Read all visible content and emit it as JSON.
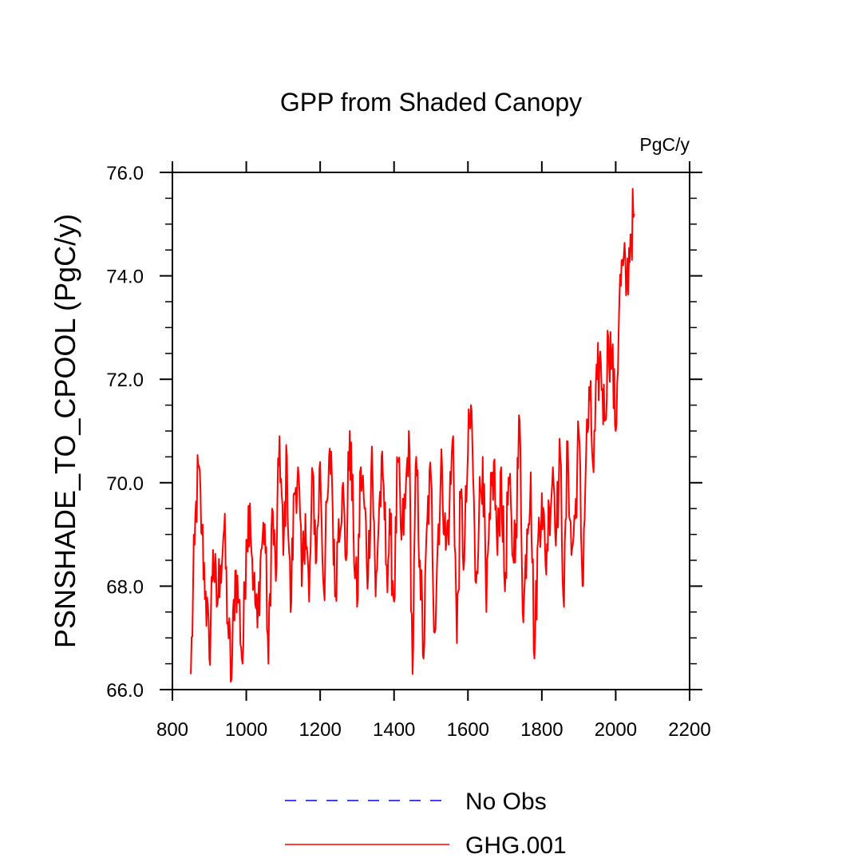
{
  "chart_data": {
    "type": "line",
    "title": "GPP from Shaded Canopy",
    "units": "PgC/y",
    "xlabel": "",
    "ylabel": "PSNSHADE_TO_CPOOL  (PgC/y)",
    "xlim": [
      800,
      2200
    ],
    "ylim": [
      66.0,
      76.0
    ],
    "xticks": [
      800,
      1000,
      1200,
      1400,
      1600,
      1800,
      2000,
      2200
    ],
    "xtick_labels": [
      "800",
      "1000",
      "1200",
      "1400",
      "1600",
      "1800",
      "2000",
      "2200"
    ],
    "yticks": [
      66.0,
      68.0,
      70.0,
      72.0,
      74.0,
      76.0
    ],
    "ytick_labels": [
      "66.0",
      "68.0",
      "70.0",
      "72.0",
      "74.0",
      "76.0"
    ],
    "legend": [
      {
        "name": "No Obs",
        "color": "#0000ff",
        "style": "dashed"
      },
      {
        "name": "GHG.001",
        "color": "#ff0000",
        "style": "solid"
      }
    ],
    "series": [
      {
        "name": "GHG.001",
        "color": "#ff0000",
        "x_start": 850,
        "x_step": 10,
        "values": [
          66.3,
          68.8,
          70.3,
          69.0,
          67.9,
          66.6,
          68.7,
          67.6,
          68.4,
          69.1,
          67.3,
          66.2,
          68.3,
          67.7,
          66.5,
          68.9,
          69.6,
          68.0,
          67.2,
          68.7,
          69.2,
          66.5,
          69.5,
          68.1,
          70.9,
          68.6,
          70.5,
          67.5,
          69.8,
          70.3,
          68.0,
          69.4,
          67.7,
          70.2,
          68.5,
          70.4,
          67.9,
          69.7,
          70.6,
          67.8,
          69.3,
          69.9,
          68.5,
          71.0,
          69.1,
          67.6,
          70.3,
          69.5,
          68.2,
          70.7,
          67.8,
          69.6,
          70.1,
          68.4,
          69.0,
          67.7,
          70.4,
          68.9,
          69.5,
          71.0,
          66.3,
          70.5,
          68.5,
          66.6,
          69.3,
          70.1,
          67.1,
          69.2,
          70.3,
          68.7,
          69.5,
          70.9,
          66.9,
          69.7,
          68.5,
          70.6,
          71.4,
          68.1,
          69.4,
          70.5,
          67.5,
          69.3,
          70.4,
          68.6,
          70.3,
          67.9,
          70.1,
          68.6,
          69.2,
          71.2,
          67.3,
          69.1,
          70.2,
          66.6,
          68.9,
          69.8,
          68.4,
          69.5,
          70.3,
          69.2,
          70.5,
          67.6,
          70.8,
          68.6,
          69.3,
          71.0,
          68.0,
          70.6,
          71.6,
          70.2,
          72.0,
          72.3,
          71.2,
          72.8,
          72.4,
          71.0,
          73.6,
          74.2,
          73.8,
          74.8,
          75.2
        ]
      }
    ]
  }
}
